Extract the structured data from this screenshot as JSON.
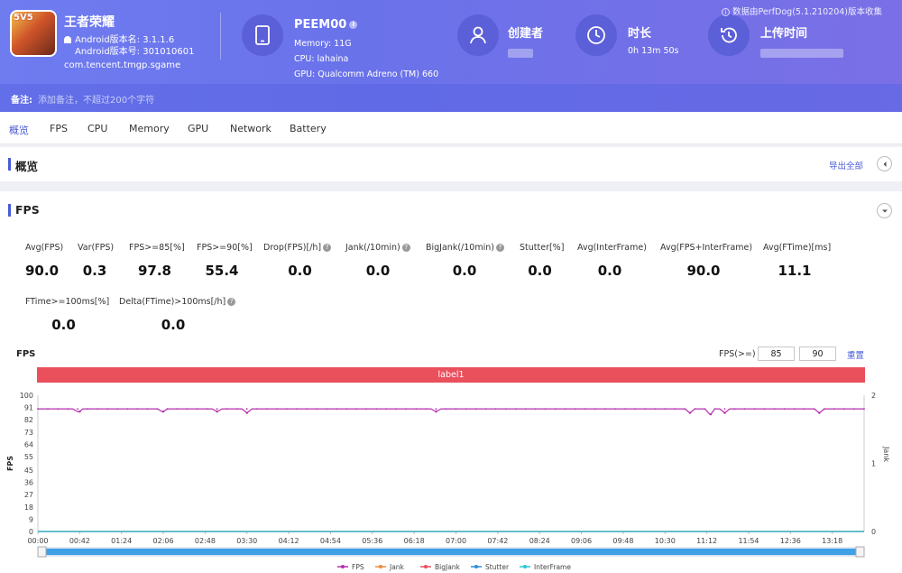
{
  "header": {
    "app_name": "王者荣耀",
    "app_badge": "5V5",
    "android_version": "Android版本名: 3.1.1.6",
    "android_code": "Android版本号: 301010601",
    "package": "com.tencent.tmgp.sgame",
    "device": {
      "name": "PEEM00",
      "memory": "Memory: 11G",
      "cpu": "CPU: lahaina",
      "gpu": "GPU: Qualcomm Adreno (TM) 660"
    },
    "creator_label": "创建者",
    "duration_label": "时长",
    "duration_value": "0h 13m 50s",
    "upload_label": "上传时间",
    "source": "数据由PerfDog(5.1.210204)版本收集",
    "note_label": "备注:",
    "note_placeholder": "添加备注，不超过200个字符"
  },
  "tabs": [
    "概览",
    "FPS",
    "CPU",
    "Memory",
    "GPU",
    "Network",
    "Battery"
  ],
  "active_tab": "概览",
  "overview": {
    "title": "概览",
    "export_label": "导出全部"
  },
  "fps_section": {
    "title": "FPS",
    "stats_row1": [
      {
        "label": "Avg(FPS)",
        "value": "90.0",
        "help": false
      },
      {
        "label": "Var(FPS)",
        "value": "0.3",
        "help": false
      },
      {
        "label": "FPS>=85[%]",
        "value": "97.8",
        "help": false
      },
      {
        "label": "FPS>=90[%]",
        "value": "55.4",
        "help": false
      },
      {
        "label": "Drop(FPS)[/h]",
        "value": "0.0",
        "help": true
      },
      {
        "label": "Jank(/10min)",
        "value": "0.0",
        "help": true
      },
      {
        "label": "BigJank(/10min)",
        "value": "0.0",
        "help": true
      },
      {
        "label": "Stutter[%]",
        "value": "0.0",
        "help": false
      },
      {
        "label": "Avg(InterFrame)",
        "value": "0.0",
        "help": false
      },
      {
        "label": "Avg(FPS+InterFrame)",
        "value": "90.0",
        "help": false
      },
      {
        "label": "Avg(FTime)[ms]",
        "value": "11.1",
        "help": false
      }
    ],
    "stats_row2": [
      {
        "label": "FTime>=100ms[%]",
        "value": "0.0",
        "help": false
      },
      {
        "label": "Delta(FTime)>100ms[/h]",
        "value": "0.0",
        "help": true
      }
    ],
    "chart_title": "FPS",
    "threshold_label": "FPS(>=)",
    "threshold_values": [
      "85",
      "90"
    ],
    "reset_label": "重置",
    "label_band": "label1"
  },
  "chart_data": {
    "type": "line",
    "ylabel": "FPS",
    "y2label": "Jank",
    "ylim": [
      0,
      100
    ],
    "yticks": [
      0,
      9,
      18,
      27,
      36,
      45,
      55,
      64,
      73,
      82,
      91,
      100
    ],
    "y2lim": [
      0,
      2
    ],
    "y2ticks": [
      0,
      1,
      2
    ],
    "xticks": [
      "00:00",
      "00:42",
      "01:24",
      "02:06",
      "02:48",
      "03:30",
      "04:12",
      "04:54",
      "05:36",
      "06:18",
      "07:00",
      "07:42",
      "08:24",
      "09:06",
      "09:48",
      "10:30",
      "11:12",
      "11:54",
      "12:36",
      "13:18"
    ],
    "duration_seconds": 830,
    "series": [
      {
        "name": "FPS",
        "color": "#b62fb0",
        "baseline": 90,
        "dips": [
          [
            42,
            88
          ],
          [
            126,
            88
          ],
          [
            180,
            88
          ],
          [
            210,
            87
          ],
          [
            400,
            88
          ],
          [
            655,
            87
          ],
          [
            676,
            86
          ],
          [
            690,
            87
          ],
          [
            785,
            87
          ]
        ]
      },
      {
        "name": "Jank",
        "color": "#f08a3a",
        "value": 0
      },
      {
        "name": "BigJank",
        "color": "#e9505c",
        "value": 0
      },
      {
        "name": "Stutter",
        "color": "#2e8be0",
        "value": 0
      },
      {
        "name": "InterFrame",
        "color": "#2ec7d8",
        "value": 0
      }
    ],
    "grid": false,
    "legend": "bottom"
  }
}
